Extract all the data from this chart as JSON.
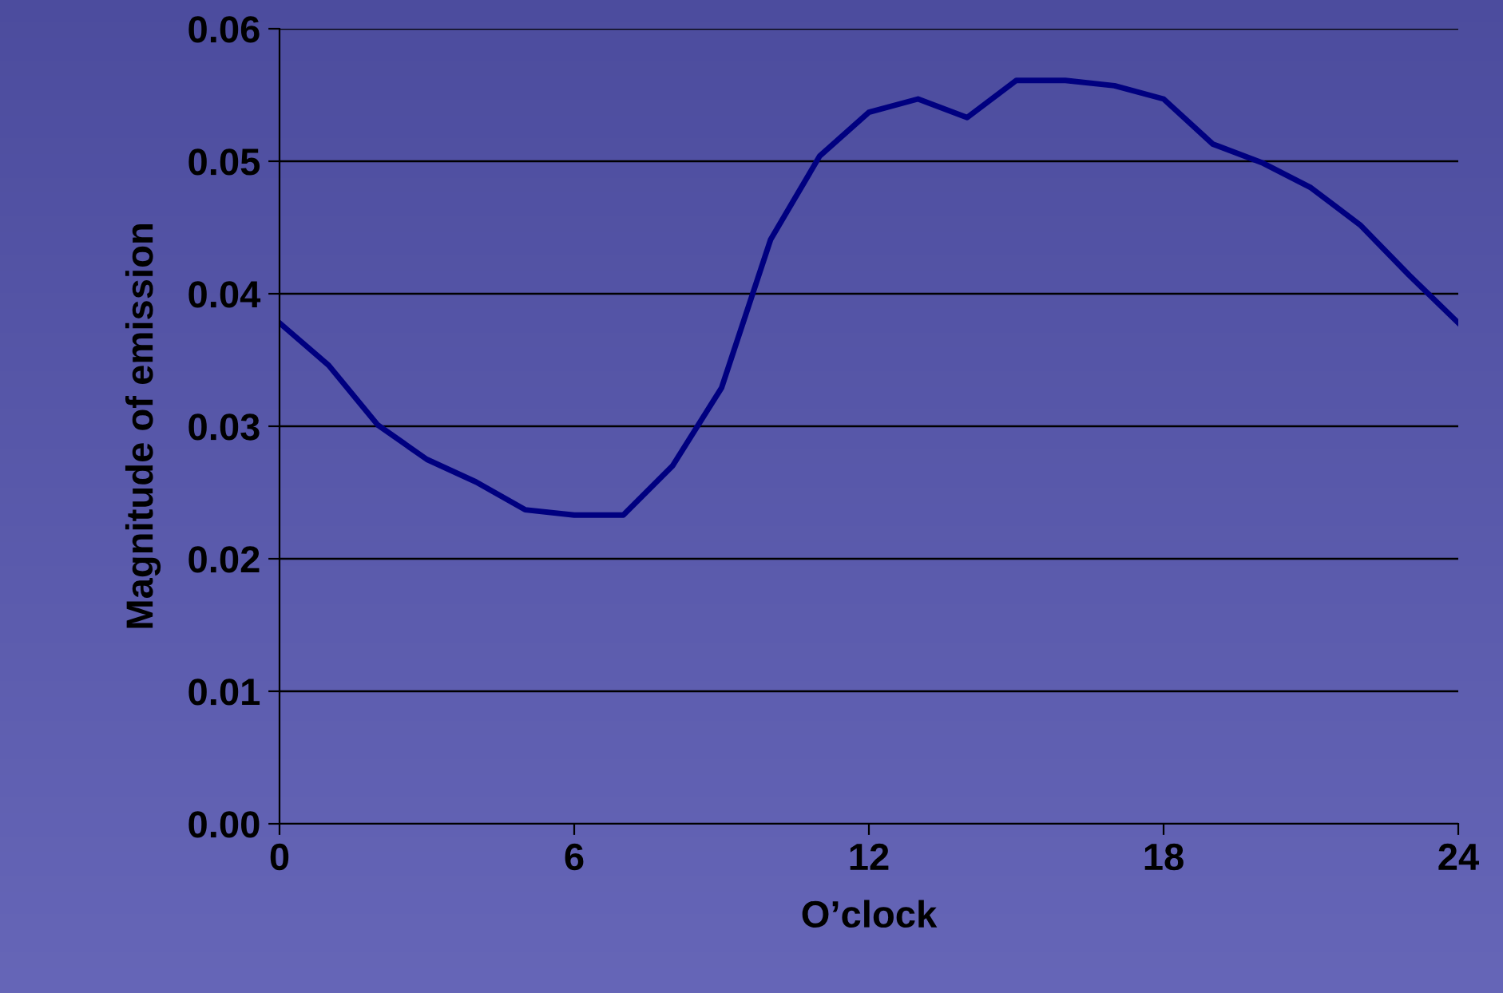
{
  "chart_data": {
    "type": "line",
    "xlabel": "O’clock",
    "ylabel": "Magnitude of emission",
    "x": [
      0,
      1,
      2,
      3,
      4,
      5,
      6,
      7,
      8,
      9,
      10,
      11,
      12,
      13,
      14,
      15,
      16,
      17,
      18,
      19,
      20,
      21,
      22,
      23,
      24
    ],
    "series": [
      {
        "color": "#000080",
        "values": [
          0.0378,
          0.0346,
          0.0301,
          0.0275,
          0.0258,
          0.0237,
          0.0233,
          0.0233,
          0.027,
          0.0329,
          0.0441,
          0.0504,
          0.0537,
          0.0547,
          0.0533,
          0.0561,
          0.0561,
          0.0557,
          0.0547,
          0.0513,
          0.0499,
          0.048,
          0.0452,
          0.0414,
          0.0378
        ]
      }
    ],
    "xlim": [
      0,
      24
    ],
    "xticks": [
      0,
      6,
      12,
      18,
      24
    ],
    "ylim": [
      0,
      0.06
    ],
    "yticks": [
      {
        "value": 0,
        "label": "0.00"
      },
      {
        "value": 0.01,
        "label": "0.01"
      },
      {
        "value": 0.02,
        "label": "0.02"
      },
      {
        "value": 0.03,
        "label": "0.03"
      },
      {
        "value": 0.04,
        "label": "0.04"
      },
      {
        "value": 0.05,
        "label": "0.05"
      },
      {
        "value": 0.06,
        "label": "0.06"
      }
    ],
    "grid": "y",
    "marker": "none",
    "line_style": "solid"
  }
}
